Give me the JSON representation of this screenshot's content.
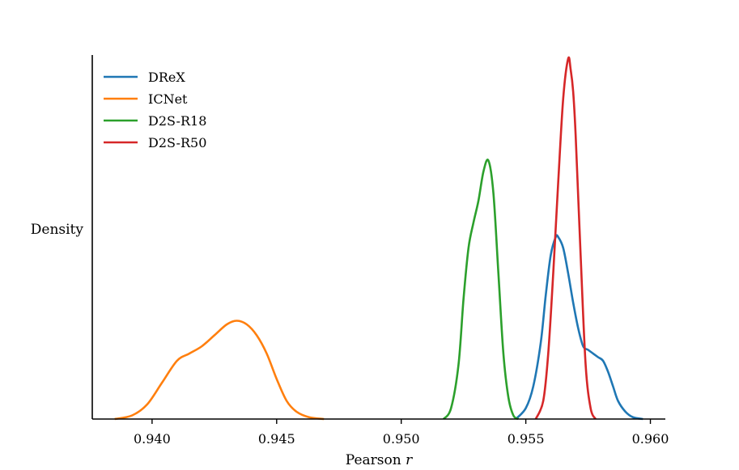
{
  "chart_data": {
    "type": "line",
    "title": "",
    "xlabel": "Pearson ",
    "xlabel_italic": "r",
    "ylabel": "Density",
    "xlim": [
      0.9376,
      0.9606
    ],
    "ylim": [
      0,
      1.0
    ],
    "xticks": [
      0.94,
      0.945,
      0.95,
      0.955,
      0.96
    ],
    "xtick_labels": [
      "0.940",
      "0.945",
      "0.950",
      "0.955",
      "0.960"
    ],
    "yticks": [],
    "grid": false,
    "legend_position": "top-left",
    "series": [
      {
        "name": "DReX",
        "color": "#1f77b4",
        "x": [
          0.9546,
          0.955,
          0.9553,
          0.9556,
          0.9558,
          0.956,
          0.9562,
          0.9563,
          0.9565,
          0.9567,
          0.9569,
          0.9571,
          0.9573,
          0.9575,
          0.9577,
          0.9579,
          0.9581,
          0.9583,
          0.9585,
          0.9587,
          0.959,
          0.9593,
          0.9597
        ],
        "y": [
          0.0,
          0.03,
          0.09,
          0.21,
          0.34,
          0.45,
          0.5,
          0.5,
          0.47,
          0.4,
          0.32,
          0.25,
          0.2,
          0.19,
          0.18,
          0.17,
          0.16,
          0.13,
          0.09,
          0.05,
          0.02,
          0.005,
          0.0
        ]
      },
      {
        "name": "ICNet",
        "color": "#ff7f0e",
        "x": [
          0.9385,
          0.9392,
          0.9398,
          0.9404,
          0.941,
          0.9415,
          0.942,
          0.9425,
          0.943,
          0.9434,
          0.9438,
          0.9442,
          0.9446,
          0.945,
          0.9454,
          0.9458,
          0.9463,
          0.9469
        ],
        "y": [
          0.0,
          0.01,
          0.04,
          0.1,
          0.16,
          0.18,
          0.2,
          0.23,
          0.26,
          0.27,
          0.26,
          0.23,
          0.18,
          0.11,
          0.05,
          0.02,
          0.005,
          0.0
        ]
      },
      {
        "name": "D2S-R18",
        "color": "#2ca02c",
        "x": [
          0.9517,
          0.952,
          0.9523,
          0.9525,
          0.9527,
          0.9529,
          0.9531,
          0.9533,
          0.9535,
          0.9537,
          0.9539,
          0.9541,
          0.9543,
          0.9545,
          0.9547
        ],
        "y": [
          0.0,
          0.03,
          0.15,
          0.33,
          0.47,
          0.54,
          0.6,
          0.68,
          0.71,
          0.62,
          0.4,
          0.18,
          0.06,
          0.01,
          0.0
        ]
      },
      {
        "name": "D2S-R50",
        "color": "#d62728",
        "x": [
          0.9554,
          0.9557,
          0.9559,
          0.9561,
          0.9563,
          0.9565,
          0.9567,
          0.9568,
          0.9569,
          0.957,
          0.9572,
          0.9574,
          0.9576,
          0.9578
        ],
        "y": [
          0.0,
          0.05,
          0.18,
          0.4,
          0.65,
          0.88,
          0.99,
          0.96,
          0.9,
          0.78,
          0.45,
          0.15,
          0.03,
          0.0
        ]
      }
    ]
  }
}
